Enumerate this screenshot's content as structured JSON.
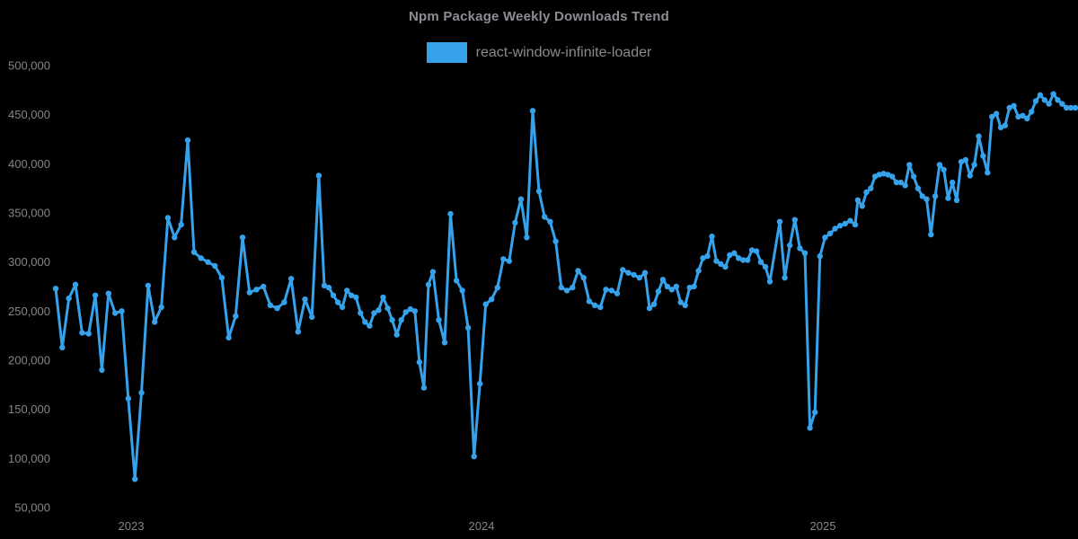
{
  "chart": {
    "title": "Npm Package Weekly Downloads Trend",
    "legend_label": "react-window-infinite-loader",
    "colors": {
      "background": "#000000",
      "line": "#36a2eb",
      "point": "#36a2eb",
      "title_text": "#8b8e93",
      "legend_text": "#8a8a8a",
      "tick_text": "#858585"
    }
  },
  "chart_data": {
    "type": "line",
    "title": "Npm Package Weekly Downloads Trend",
    "legend_position": "top",
    "grid": false,
    "xlabel": "",
    "ylabel": "",
    "ylim": [
      50000,
      500000
    ],
    "y_axis": {
      "ticks": [
        50000,
        100000,
        150000,
        200000,
        250000,
        300000,
        350000,
        400000,
        450000,
        500000
      ],
      "format": "thousands-comma"
    },
    "x_axis": {
      "ticks": [
        {
          "label": "2023",
          "t": 0.074
        },
        {
          "label": "2024",
          "t": 0.4176
        },
        {
          "label": "2025",
          "t": 0.7524
        }
      ]
    },
    "series": [
      {
        "name": "react-window-infinite-loader",
        "unit": "weekly downloads",
        "color": "#36a2eb",
        "segments": [
          {
            "t0": 0.0,
            "t1": 0.1295,
            "values": [
              273000,
              213000,
              263000,
              277000,
              228000,
              227000,
              266000,
              190000,
              268000,
              248000,
              250000,
              161000,
              79000,
              167000,
              276000,
              239000,
              254000,
              345000,
              325000,
              338000,
              424000
            ]
          },
          {
            "t0": 0.1357,
            "t1": 0.2581,
            "values": [
              310000,
              304000,
              300000,
              296000,
              284000,
              223000,
              245000,
              325000,
              269000,
              272000,
              275000,
              256000,
              253000,
              259000,
              283000,
              229000,
              262000,
              244000,
              388000
            ]
          },
          {
            "t0": 0.2634,
            "t1": 0.3656,
            "values": [
              276000,
              274000,
              266000,
              259000,
              254000,
              271000,
              266000,
              264000,
              248000,
              239000,
              235000,
              248000,
              251000,
              264000,
              253000,
              241000,
              226000,
              241000,
              249000,
              252000,
              250000,
              198000,
              172000,
              277000
            ]
          },
          {
            "t0": 0.37,
            "t1": 0.4678,
            "values": [
              290000,
              241000,
              218000,
              349000,
              281000,
              271000,
              233000,
              102000,
              176000,
              257000,
              262000,
              274000,
              303000,
              301000,
              340000,
              364000,
              325000,
              454000
            ]
          },
          {
            "t0": 0.474,
            "t1": 0.578,
            "values": [
              372000,
              346000,
              341000,
              321000,
              274000,
              271000,
              274000,
              291000,
              284000,
              260000,
              256000,
              254000,
              272000,
              271000,
              268000,
              292000,
              289000,
              287000,
              284000,
              289000
            ]
          },
          {
            "t0": 0.5824,
            "t1": 0.7004,
            "values": [
              253000,
              257000,
              270000,
              282000,
              275000,
              272000,
              275000,
              259000,
              256000,
              274000,
              275000,
              291000,
              304000,
              306000,
              326000,
              301000,
              298000,
              295000,
              307000,
              309000,
              304000,
              302000,
              302000,
              312000,
              311000,
              300000,
              295000,
              280000
            ]
          },
          {
            "t0": 0.7101,
            "t1": 0.7841,
            "values": [
              341000,
              284000,
              317000,
              343000,
              314000,
              309000,
              131000,
              147000,
              306000,
              325000,
              329000,
              334000,
              337000,
              339000,
              342000,
              338000
            ]
          },
          {
            "t0": 0.7867,
            "t1": 0.8837,
            "values": [
              363000,
              357000,
              371000,
              375000,
              387000,
              389000,
              390000,
              389000,
              387000,
              381000,
              381000,
              378000,
              399000,
              387000,
              375000,
              367000,
              364000,
              328000,
              367000,
              399000,
              394000,
              365000,
              381000,
              363000
            ]
          },
          {
            "t0": 0.8881,
            "t1": 1.0,
            "values": [
              402000,
              404000,
              388000,
              399000,
              428000,
              408000,
              391000,
              448000,
              451000,
              437000,
              439000,
              457000,
              459000,
              448000,
              449000,
              446000,
              453000,
              464000,
              470000,
              465000,
              461000,
              471000,
              465000,
              461000,
              457000,
              457000,
              457000
            ]
          }
        ]
      }
    ]
  }
}
